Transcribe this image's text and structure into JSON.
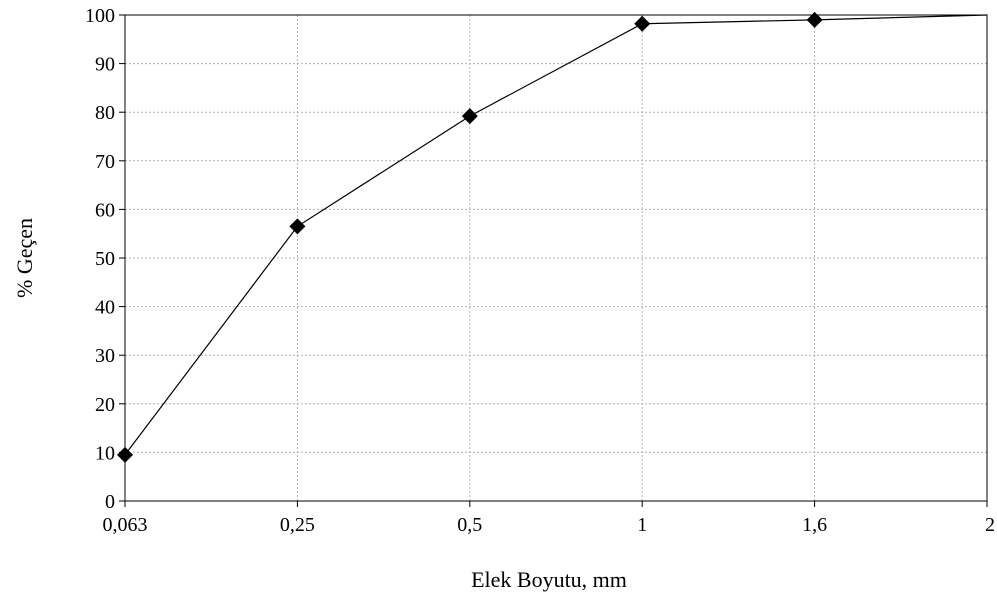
{
  "chart_data": {
    "type": "line",
    "title": "",
    "xlabel": "Elek Boyutu, mm",
    "ylabel": "% Geçen",
    "categories": [
      "0,063",
      "0,25",
      "0,5",
      "1",
      "1,6",
      "2"
    ],
    "series": [
      {
        "values": [
          9.5,
          56.5,
          79.2,
          98.2,
          99.0,
          100
        ]
      }
    ],
    "ylim": [
      0,
      100
    ],
    "yticks": [
      0,
      10,
      20,
      30,
      40,
      50,
      60,
      70,
      80,
      90,
      100
    ],
    "grid": true,
    "marker": "diamond",
    "colors": {
      "line": "#000000",
      "marker": "#000000",
      "grid": "#b0b0b0"
    }
  }
}
